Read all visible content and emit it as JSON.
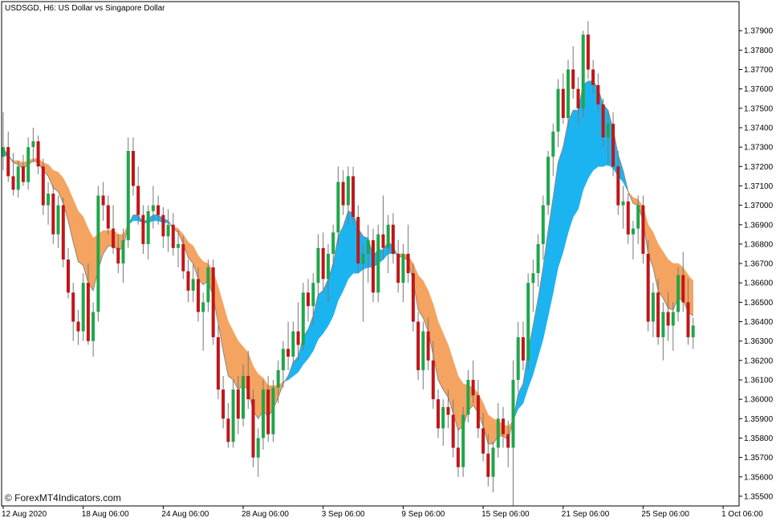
{
  "window_title": "USDSGD, H6:  US Dollar vs Singapore Dollar",
  "watermark": "© ForexMT4Indicators.com",
  "colors": {
    "bull": "#1fa64a",
    "bear": "#c0161a",
    "band_up": "#1cb4f0",
    "band_down": "#f4a460",
    "price_line": "#888888",
    "axis": "#000000"
  },
  "chart_data": {
    "type": "candlestick",
    "title": "USDSGD, H6:  US Dollar vs Singapore Dollar",
    "ylim": [
      1.3545,
      1.3805
    ],
    "y_ticks": [
      1.355,
      1.356,
      1.357,
      1.358,
      1.359,
      1.36,
      1.361,
      1.362,
      1.363,
      1.364,
      1.365,
      1.366,
      1.367,
      1.368,
      1.369,
      1.37,
      1.371,
      1.372,
      1.373,
      1.374,
      1.375,
      1.376,
      1.377,
      1.378,
      1.379
    ],
    "y_tick_labels": [
      "1.35500",
      "1.35600",
      "1.35700",
      "1.35800",
      "1.35900",
      "1.36000",
      "1.36100",
      "1.36200",
      "1.36300",
      "1.36400",
      "1.36500",
      "1.36600",
      "1.36700",
      "1.36800",
      "1.36900",
      "1.37000",
      "1.37100",
      "1.37200",
      "1.37300",
      "1.37400",
      "1.37500",
      "1.37600",
      "1.37700",
      "1.37800",
      "1.37900"
    ],
    "x_tick_labels": [
      "12 Aug 2020",
      "18 Aug 06:00",
      "24 Aug 06:00",
      "28 Aug 06:00",
      "3 Sep 06:00",
      "9 Sep 06:00",
      "15 Sep 06:00",
      "21 Sep 06:00",
      "25 Sep 06:00",
      "1 Oct 06:00"
    ],
    "x_tick_index": [
      0,
      16,
      32,
      48,
      64,
      80,
      96,
      112,
      128,
      144
    ],
    "candles": [
      [
        1.3725,
        1.3748,
        1.3718,
        1.373
      ],
      [
        1.373,
        1.3738,
        1.3712,
        1.3715
      ],
      [
        1.3715,
        1.3727,
        1.3705,
        1.3708
      ],
      [
        1.3708,
        1.3723,
        1.3704,
        1.372
      ],
      [
        1.372,
        1.3726,
        1.371,
        1.3712
      ],
      [
        1.3712,
        1.3735,
        1.3708,
        1.373
      ],
      [
        1.373,
        1.374,
        1.3722,
        1.3733
      ],
      [
        1.3733,
        1.3736,
        1.3716,
        1.372
      ],
      [
        1.372,
        1.3724,
        1.3695,
        1.37
      ],
      [
        1.37,
        1.3712,
        1.369,
        1.3706
      ],
      [
        1.3706,
        1.371,
        1.368,
        1.3685
      ],
      [
        1.3685,
        1.3705,
        1.3678,
        1.37
      ],
      [
        1.37,
        1.3704,
        1.3668,
        1.3672
      ],
      [
        1.3672,
        1.3678,
        1.3652,
        1.3655
      ],
      [
        1.3655,
        1.366,
        1.363,
        1.364
      ],
      [
        1.364,
        1.3646,
        1.3628,
        1.3635
      ],
      [
        1.3635,
        1.3665,
        1.363,
        1.366
      ],
      [
        1.366,
        1.367,
        1.3628,
        1.363
      ],
      [
        1.363,
        1.365,
        1.3622,
        1.3645
      ],
      [
        1.3645,
        1.371,
        1.364,
        1.3705
      ],
      [
        1.3705,
        1.3712,
        1.3692,
        1.37
      ],
      [
        1.37,
        1.3705,
        1.3685,
        1.3688
      ],
      [
        1.3688,
        1.37,
        1.3675,
        1.3678
      ],
      [
        1.3678,
        1.3685,
        1.3665,
        1.367
      ],
      [
        1.367,
        1.3688,
        1.366,
        1.3682
      ],
      [
        1.3682,
        1.3735,
        1.3678,
        1.3728
      ],
      [
        1.3728,
        1.3735,
        1.3705,
        1.371
      ],
      [
        1.371,
        1.372,
        1.369,
        1.3695
      ],
      [
        1.3695,
        1.37,
        1.3675,
        1.368
      ],
      [
        1.368,
        1.37,
        1.3672,
        1.3697
      ],
      [
        1.3697,
        1.371,
        1.3688,
        1.37
      ],
      [
        1.37,
        1.3705,
        1.369,
        1.3695
      ],
      [
        1.3695,
        1.3699,
        1.3678,
        1.3684
      ],
      [
        1.3684,
        1.3698,
        1.3676,
        1.369
      ],
      [
        1.369,
        1.3696,
        1.3674,
        1.3678
      ],
      [
        1.3678,
        1.3687,
        1.3668,
        1.368
      ],
      [
        1.368,
        1.3684,
        1.3662,
        1.3666
      ],
      [
        1.3666,
        1.3672,
        1.365,
        1.3656
      ],
      [
        1.3656,
        1.367,
        1.365,
        1.3662
      ],
      [
        1.3662,
        1.3668,
        1.364,
        1.3645
      ],
      [
        1.3645,
        1.3655,
        1.3625,
        1.365
      ],
      [
        1.365,
        1.3672,
        1.3645,
        1.3668
      ],
      [
        1.3668,
        1.3672,
        1.3628,
        1.3632
      ],
      [
        1.3632,
        1.3638,
        1.36,
        1.3605
      ],
      [
        1.3605,
        1.3612,
        1.3585,
        1.359
      ],
      [
        1.359,
        1.3598,
        1.3575,
        1.3578
      ],
      [
        1.3578,
        1.361,
        1.3575,
        1.3605
      ],
      [
        1.3605,
        1.3612,
        1.3582,
        1.359
      ],
      [
        1.359,
        1.3618,
        1.3586,
        1.3612
      ],
      [
        1.3612,
        1.3625,
        1.3595,
        1.36
      ],
      [
        1.36,
        1.3605,
        1.3565,
        1.357
      ],
      [
        1.357,
        1.3585,
        1.356,
        1.358
      ],
      [
        1.358,
        1.361,
        1.3574,
        1.3605
      ],
      [
        1.3605,
        1.3612,
        1.3578,
        1.3582
      ],
      [
        1.3582,
        1.361,
        1.3578,
        1.3606
      ],
      [
        1.3606,
        1.362,
        1.3598,
        1.3615
      ],
      [
        1.3615,
        1.363,
        1.3606,
        1.3626
      ],
      [
        1.3626,
        1.364,
        1.3615,
        1.3622
      ],
      [
        1.3622,
        1.364,
        1.3618,
        1.3635
      ],
      [
        1.3635,
        1.365,
        1.362,
        1.3628
      ],
      [
        1.3628,
        1.366,
        1.3625,
        1.3655
      ],
      [
        1.3655,
        1.3662,
        1.364,
        1.3648
      ],
      [
        1.3648,
        1.3665,
        1.3638,
        1.366
      ],
      [
        1.366,
        1.3685,
        1.3652,
        1.3678
      ],
      [
        1.3678,
        1.3686,
        1.3655,
        1.3662
      ],
      [
        1.3662,
        1.368,
        1.365,
        1.3675
      ],
      [
        1.3675,
        1.369,
        1.3668,
        1.3686
      ],
      [
        1.3686,
        1.372,
        1.368,
        1.3712
      ],
      [
        1.3712,
        1.3718,
        1.3695,
        1.37
      ],
      [
        1.37,
        1.372,
        1.369,
        1.3715
      ],
      [
        1.3715,
        1.372,
        1.369,
        1.3694
      ],
      [
        1.3694,
        1.37,
        1.3665,
        1.367
      ],
      [
        1.367,
        1.368,
        1.364,
        1.3675
      ],
      [
        1.3675,
        1.369,
        1.366,
        1.3682
      ],
      [
        1.3682,
        1.3688,
        1.365,
        1.3655
      ],
      [
        1.3655,
        1.369,
        1.365,
        1.3685
      ],
      [
        1.3685,
        1.3705,
        1.3672,
        1.3678
      ],
      [
        1.3678,
        1.3695,
        1.3665,
        1.369
      ],
      [
        1.369,
        1.3696,
        1.367,
        1.3675
      ],
      [
        1.3675,
        1.3682,
        1.3655,
        1.366
      ],
      [
        1.366,
        1.368,
        1.365,
        1.3675
      ],
      [
        1.3675,
        1.369,
        1.366,
        1.3665
      ],
      [
        1.3665,
        1.367,
        1.3635,
        1.364
      ],
      [
        1.364,
        1.3645,
        1.361,
        1.3615
      ],
      [
        1.3615,
        1.364,
        1.3605,
        1.3635
      ],
      [
        1.3635,
        1.3642,
        1.3615,
        1.362
      ],
      [
        1.362,
        1.363,
        1.3595,
        1.36
      ],
      [
        1.36,
        1.3605,
        1.358,
        1.3585
      ],
      [
        1.3585,
        1.36,
        1.3576,
        1.3596
      ],
      [
        1.3596,
        1.3605,
        1.3585,
        1.3592
      ],
      [
        1.3592,
        1.36,
        1.357,
        1.3575
      ],
      [
        1.3575,
        1.3585,
        1.356,
        1.3565
      ],
      [
        1.3565,
        1.3596,
        1.356,
        1.3592
      ],
      [
        1.3592,
        1.3615,
        1.3588,
        1.361
      ],
      [
        1.361,
        1.362,
        1.3598,
        1.3602
      ],
      [
        1.3602,
        1.361,
        1.358,
        1.3585
      ],
      [
        1.3585,
        1.3593,
        1.3568,
        1.3572
      ],
      [
        1.3572,
        1.3582,
        1.3555,
        1.356
      ],
      [
        1.356,
        1.3578,
        1.3552,
        1.3575
      ],
      [
        1.3575,
        1.3598,
        1.357,
        1.359
      ],
      [
        1.359,
        1.3596,
        1.3575,
        1.3582
      ],
      [
        1.3582,
        1.3589,
        1.3565,
        1.3575
      ],
      [
        1.3575,
        1.362,
        1.3545,
        1.361
      ],
      [
        1.361,
        1.364,
        1.3604,
        1.3632
      ],
      [
        1.3632,
        1.364,
        1.3615,
        1.362
      ],
      [
        1.362,
        1.3665,
        1.3615,
        1.366
      ],
      [
        1.366,
        1.3672,
        1.3645,
        1.3665
      ],
      [
        1.3665,
        1.3685,
        1.3658,
        1.368
      ],
      [
        1.368,
        1.3705,
        1.3672,
        1.37
      ],
      [
        1.37,
        1.3728,
        1.3695,
        1.3725
      ],
      [
        1.3725,
        1.3742,
        1.3715,
        1.3738
      ],
      [
        1.3738,
        1.3765,
        1.373,
        1.376
      ],
      [
        1.376,
        1.3768,
        1.3742,
        1.3745
      ],
      [
        1.3745,
        1.3775,
        1.374,
        1.377
      ],
      [
        1.377,
        1.3782,
        1.3755,
        1.376
      ],
      [
        1.376,
        1.3766,
        1.3742,
        1.375
      ],
      [
        1.375,
        1.379,
        1.3745,
        1.3788
      ],
      [
        1.3788,
        1.3795,
        1.3765,
        1.377
      ],
      [
        1.377,
        1.3775,
        1.3758,
        1.3762
      ],
      [
        1.3762,
        1.3768,
        1.3748,
        1.3752
      ],
      [
        1.3752,
        1.3755,
        1.373,
        1.3735
      ],
      [
        1.3735,
        1.3748,
        1.372,
        1.3742
      ],
      [
        1.3742,
        1.3748,
        1.3715,
        1.372
      ],
      [
        1.372,
        1.3728,
        1.3695,
        1.37
      ],
      [
        1.37,
        1.371,
        1.3688,
        1.3702
      ],
      [
        1.3702,
        1.3706,
        1.368,
        1.3685
      ],
      [
        1.3685,
        1.3692,
        1.3672,
        1.3688
      ],
      [
        1.3688,
        1.3705,
        1.368,
        1.37
      ],
      [
        1.37,
        1.3705,
        1.367,
        1.3675
      ],
      [
        1.3675,
        1.3682,
        1.3635,
        1.364
      ],
      [
        1.364,
        1.366,
        1.3632,
        1.3655
      ],
      [
        1.3655,
        1.3662,
        1.3628,
        1.3632
      ],
      [
        1.3632,
        1.365,
        1.362,
        1.3645
      ],
      [
        1.3645,
        1.3655,
        1.363,
        1.3638
      ],
      [
        1.3638,
        1.365,
        1.3625,
        1.3645
      ],
      [
        1.3645,
        1.3668,
        1.364,
        1.3664
      ],
      [
        1.3664,
        1.3676,
        1.3645,
        1.365
      ],
      [
        1.365,
        1.3662,
        1.3628,
        1.3632
      ],
      [
        1.3632,
        1.3642,
        1.3626,
        1.3638
      ]
    ],
    "band_fast": [
      1.3729,
      1.3726,
      1.3722,
      1.3721,
      1.3719,
      1.3721,
      1.3723,
      1.3722,
      1.3718,
      1.3715,
      1.3709,
      1.3707,
      1.3701,
      1.3692,
      1.3681,
      1.3671,
      1.3669,
      1.366,
      1.3656,
      1.3667,
      1.3675,
      1.3679,
      1.3679,
      1.3677,
      1.3678,
      1.369,
      1.3695,
      1.3695,
      1.3691,
      1.3693,
      1.3695,
      1.3695,
      1.3693,
      1.3692,
      1.3688,
      1.3686,
      1.368,
      1.3673,
      1.367,
      1.3662,
      1.3659,
      1.3661,
      1.3653,
      1.3639,
      1.3625,
      1.3612,
      1.361,
      1.3605,
      1.3607,
      1.3605,
      1.3594,
      1.359,
      1.3594,
      1.3591,
      1.3595,
      1.3601,
      1.3608,
      1.3612,
      1.3619,
      1.3622,
      1.3632,
      1.3636,
      1.3643,
      1.3654,
      1.3656,
      1.3662,
      1.367,
      1.3684,
      1.3689,
      1.3697,
      1.3696,
      1.3688,
      1.3684,
      1.3683,
      1.3674,
      1.3677,
      1.3677,
      1.3681,
      1.3679,
      1.3673,
      1.3674,
      1.3671,
      1.3661,
      1.3646,
      1.3642,
      1.3635,
      1.3623,
      1.361,
      1.3605,
      1.3601,
      1.3593,
      1.3584,
      1.3586,
      1.3594,
      1.3597,
      1.3593,
      1.3586,
      1.3577,
      1.3577,
      1.3581,
      1.3581,
      1.3579,
      1.3589,
      1.3603,
      1.3608,
      1.3625,
      1.3638,
      1.3652,
      1.3668,
      1.3687,
      1.3704,
      1.3722,
      1.373,
      1.3743,
      1.3749,
      1.3749,
      1.3762,
      1.3764,
      1.3764,
      1.376,
      1.3752,
      1.3749,
      1.3739,
      1.3726,
      1.3718,
      1.3707,
      1.3701,
      1.37,
      1.3692,
      1.3675,
      1.3668,
      1.3656,
      1.3652,
      1.3647,
      1.3646,
      1.3652,
      1.3651,
      1.3645,
      1.3643
    ],
    "band_slow": [
      1.3726,
      1.3725,
      1.3723,
      1.3723,
      1.3722,
      1.3723,
      1.3724,
      1.3724,
      1.3722,
      1.3721,
      1.3718,
      1.3717,
      1.3714,
      1.3709,
      1.3703,
      1.3697,
      1.3694,
      1.3688,
      1.3683,
      1.3685,
      1.3687,
      1.3687,
      1.3687,
      1.3685,
      1.3685,
      1.369,
      1.3692,
      1.3692,
      1.3691,
      1.3691,
      1.3692,
      1.3692,
      1.3691,
      1.3691,
      1.3689,
      1.3688,
      1.3685,
      1.3681,
      1.3679,
      1.3674,
      1.3671,
      1.367,
      1.3666,
      1.3658,
      1.3649,
      1.364,
      1.3635,
      1.363,
      1.3627,
      1.3624,
      1.3617,
      1.3613,
      1.3611,
      1.3607,
      1.3607,
      1.3607,
      1.3609,
      1.361,
      1.3612,
      1.3614,
      1.3618,
      1.3621,
      1.3625,
      1.3631,
      1.3634,
      1.3638,
      1.3643,
      1.3651,
      1.3656,
      1.3662,
      1.3665,
      1.3665,
      1.3667,
      1.3668,
      1.3668,
      1.367,
      1.3672,
      1.3675,
      1.3675,
      1.3675,
      1.3675,
      1.3674,
      1.367,
      1.3664,
      1.3661,
      1.3656,
      1.3649,
      1.364,
      1.3634,
      1.3628,
      1.362,
      1.3612,
      1.3608,
      1.3607,
      1.3606,
      1.3603,
      1.3598,
      1.3592,
      1.359,
      1.3589,
      1.3587,
      1.3586,
      1.3589,
      1.3595,
      1.3598,
      1.3606,
      1.3613,
      1.3622,
      1.3631,
      1.3643,
      1.3655,
      1.3668,
      1.3676,
      1.3686,
      1.3694,
      1.3698,
      1.3708,
      1.3714,
      1.3718,
      1.372,
      1.372,
      1.3721,
      1.3719,
      1.3715,
      1.3712,
      1.3707,
      1.3704,
      1.3703,
      1.3699,
      1.369,
      1.3686,
      1.368,
      1.3676,
      1.3672,
      1.367,
      1.367,
      1.3668,
      1.3664,
      1.3661
    ]
  }
}
